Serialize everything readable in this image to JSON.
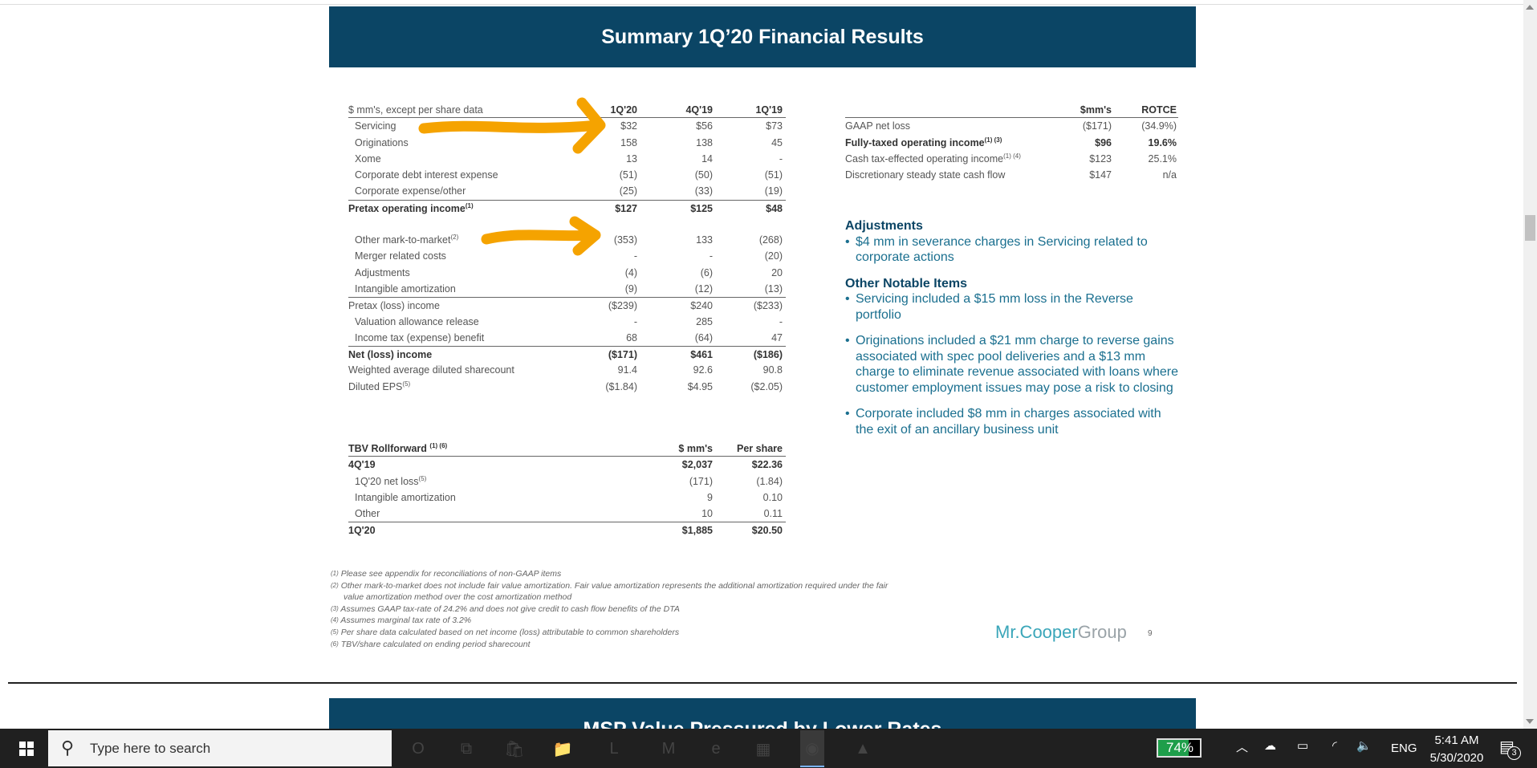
{
  "slide": {
    "title": "Summary 1Q’20 Financial Results",
    "next_title": "MSP Value Pressured by Lower Rates",
    "page_number": "9",
    "logo": "Mr.CooperGroup",
    "logo_part1": "Mr.Cooper",
    "logo_part2": "Group",
    "annotation_color": "#f5a300",
    "header_color": "#0b4565"
  },
  "left_table": {
    "header": {
      "label": "$ mm's, except per share data",
      "cols": [
        "1Q'20",
        "4Q'19",
        "1Q'19"
      ]
    },
    "rows": [
      {
        "label": "Servicing",
        "v": [
          "$32",
          "$56",
          "$73"
        ],
        "ind": true
      },
      {
        "label": "Originations",
        "v": [
          "158",
          "138",
          "45"
        ],
        "ind": true
      },
      {
        "label": "Xome",
        "v": [
          "13",
          "14",
          "-"
        ],
        "ind": true
      },
      {
        "label": "Corporate debt interest expense",
        "v": [
          "(51)",
          "(50)",
          "(51)"
        ],
        "ind": true
      },
      {
        "label": "Corporate expense/other",
        "v": [
          "(25)",
          "(33)",
          "(19)"
        ],
        "ind": true
      },
      {
        "label": "Pretax operating income",
        "sup": "(1)",
        "v": [
          "$127",
          "$125",
          "$48"
        ],
        "bold": true,
        "top": true
      },
      {
        "label": "",
        "v": [
          "",
          "",
          ""
        ],
        "blank": true
      },
      {
        "label": "Other mark-to-market",
        "sup": "(2)",
        "v": [
          "(353)",
          "133",
          "(268)"
        ],
        "ind": true
      },
      {
        "label": "Merger related costs",
        "v": [
          "-",
          "-",
          "(20)"
        ],
        "ind": true
      },
      {
        "label": "Adjustments",
        "v": [
          "(4)",
          "(6)",
          "20"
        ],
        "ind": true
      },
      {
        "label": "Intangible amortization",
        "v": [
          "(9)",
          "(12)",
          "(13)"
        ],
        "ind": true
      },
      {
        "label": "Pretax (loss) income",
        "v": [
          "($239)",
          "$240",
          "($233)"
        ],
        "top": true
      },
      {
        "label": "Valuation allowance release",
        "v": [
          "-",
          "285",
          "-"
        ],
        "ind": true
      },
      {
        "label": "Income tax (expense) benefit",
        "v": [
          "68",
          "(64)",
          "47"
        ],
        "ind": true
      },
      {
        "label": "Net (loss) income",
        "v": [
          "($171)",
          "$461",
          "($186)"
        ],
        "bold": true,
        "top": true
      },
      {
        "label": "Weighted average diluted sharecount",
        "v": [
          "91.4",
          "92.6",
          "90.8"
        ]
      },
      {
        "label": "Diluted EPS",
        "sup": "(5)",
        "v": [
          "($1.84)",
          "$4.95",
          "($2.05)"
        ]
      }
    ]
  },
  "right_table": {
    "header": {
      "label": "",
      "cols": [
        "$mm's",
        "ROTCE"
      ]
    },
    "rows": [
      {
        "label": "GAAP net loss",
        "v": [
          "($171)",
          "(34.9%)"
        ]
      },
      {
        "label": "Fully-taxed operating income",
        "sup": "(1) (3)",
        "v": [
          "$96",
          "19.6%"
        ],
        "bold": true
      },
      {
        "label": "Cash tax-effected operating income",
        "sup": "(1) (4)",
        "v": [
          "$123",
          "25.1%"
        ]
      },
      {
        "label": "Discretionary steady state cash flow",
        "v": [
          "$147",
          "n/a"
        ]
      }
    ]
  },
  "tbv_table": {
    "header": {
      "label": "TBV Rollforward",
      "sup": "(1) (6)",
      "cols": [
        "$ mm's",
        "Per share"
      ]
    },
    "rows": [
      {
        "label": "4Q'19",
        "v": [
          "$2,037",
          "$22.36"
        ],
        "bold": true
      },
      {
        "label": "1Q'20 net loss",
        "sup": "(5)",
        "v": [
          "(171)",
          "(1.84)"
        ],
        "ind": true
      },
      {
        "label": "Intangible amortization",
        "v": [
          "9",
          "0.10"
        ],
        "ind": true
      },
      {
        "label": "Other",
        "v": [
          "10",
          "0.11"
        ],
        "ind": true
      },
      {
        "label": "1Q'20",
        "v": [
          "$1,885",
          "$20.50"
        ],
        "bold": true,
        "top": true
      }
    ]
  },
  "notes": {
    "adjustments_title": "Adjustments",
    "adjustments": [
      "$4 mm in severance charges in Servicing related to corporate actions"
    ],
    "other_title": "Other Notable Items",
    "other": [
      "Servicing included a $15 mm loss in the Reverse portfolio",
      "Originations included a $21 mm charge to reverse gains associated with spec pool deliveries and a $13 mm charge to eliminate revenue associated with loans where customer employment issues may pose a risk to closing",
      "Corporate included $8 mm in charges associated with the exit of an ancillary business unit"
    ]
  },
  "footnotes": [
    {
      "sup": "(1)",
      "text": "Please see appendix for reconciliations of non-GAAP items"
    },
    {
      "sup": "(2)",
      "text": "Other mark-to-market does not include fair value amortization. Fair value amortization represents the additional amortization required under the fair"
    },
    {
      "sup": "",
      "text": "value amortization method over the cost amortization method"
    },
    {
      "sup": "(3)",
      "text": "Assumes GAAP tax-rate of 24.2% and does not give credit to cash flow benefits of the DTA"
    },
    {
      "sup": "(4)",
      "text": "Assumes marginal tax rate of 3.2%"
    },
    {
      "sup": "(5)",
      "text": "Per share data calculated based on net income (loss) attributable to common shareholders"
    },
    {
      "sup": "(6)",
      "text": "TBV/share calculated on ending period sharecount"
    }
  ],
  "taskbar": {
    "search_placeholder": "Type here to search",
    "battery": "74%",
    "battery_level": 74,
    "language": "ENG",
    "time": "5:41 AM",
    "date": "5/30/2020",
    "notifications": "3",
    "apps": [
      {
        "icon": "cortana-icon",
        "g": "O"
      },
      {
        "icon": "task-view-icon",
        "g": "⧉"
      },
      {
        "icon": "store-icon",
        "g": "🛍"
      },
      {
        "icon": "file-explorer-icon",
        "g": "📁"
      },
      {
        "icon": "app-l-icon",
        "g": "L"
      },
      {
        "icon": "mcafee-icon",
        "g": "M"
      },
      {
        "icon": "edge-icon",
        "g": "e"
      },
      {
        "icon": "calculator-icon",
        "g": "▦"
      },
      {
        "icon": "chrome-icon",
        "g": "◉"
      },
      {
        "icon": "photos-icon",
        "g": "▲"
      }
    ]
  }
}
